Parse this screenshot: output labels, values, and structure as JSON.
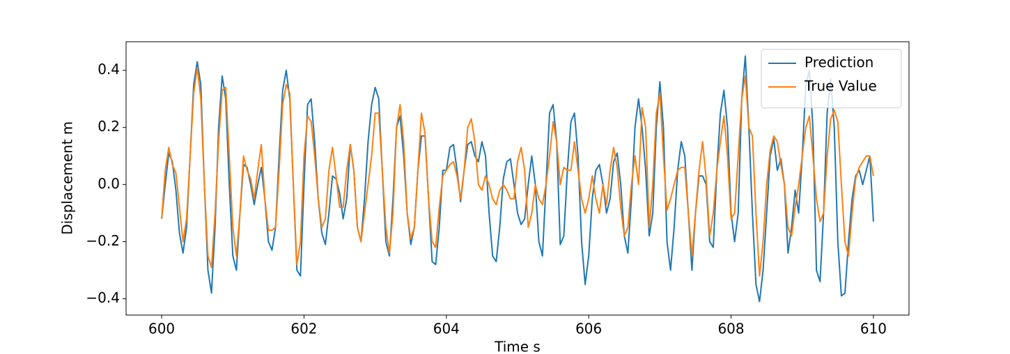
{
  "chart_data": {
    "type": "line",
    "x_label": "Time s",
    "y_label": "Displacement m",
    "x": [
      600.0,
      600.05,
      600.1,
      600.15,
      600.2,
      600.25,
      600.3,
      600.35,
      600.4,
      600.45,
      600.5,
      600.55,
      600.6,
      600.65,
      600.7,
      600.75,
      600.8,
      600.85,
      600.9,
      600.95,
      601.0,
      601.05,
      601.1,
      601.15,
      601.2,
      601.25,
      601.3,
      601.35,
      601.4,
      601.45,
      601.5,
      601.55,
      601.6,
      601.65,
      601.7,
      601.75,
      601.8,
      601.85,
      601.9,
      601.95,
      602.0,
      602.05,
      602.1,
      602.15,
      602.2,
      602.25,
      602.3,
      602.35,
      602.4,
      602.45,
      602.5,
      602.55,
      602.6,
      602.65,
      602.7,
      602.75,
      602.8,
      602.85,
      602.9,
      602.95,
      603.0,
      603.05,
      603.1,
      603.15,
      603.2,
      603.25,
      603.3,
      603.35,
      603.4,
      603.45,
      603.5,
      603.55,
      603.6,
      603.65,
      603.7,
      603.75,
      603.8,
      603.85,
      603.9,
      603.95,
      604.0,
      604.05,
      604.1,
      604.15,
      604.2,
      604.25,
      604.3,
      604.35,
      604.4,
      604.45,
      604.5,
      604.55,
      604.6,
      604.65,
      604.7,
      604.75,
      604.8,
      604.85,
      604.9,
      604.95,
      605.0,
      605.05,
      605.1,
      605.15,
      605.2,
      605.25,
      605.3,
      605.35,
      605.4,
      605.45,
      605.5,
      605.55,
      605.6,
      605.65,
      605.7,
      605.75,
      605.8,
      605.85,
      605.9,
      605.95,
      606.0,
      606.05,
      606.1,
      606.15,
      606.2,
      606.25,
      606.3,
      606.35,
      606.4,
      606.45,
      606.5,
      606.55,
      606.6,
      606.65,
      606.7,
      606.75,
      606.8,
      606.85,
      606.9,
      606.95,
      607.0,
      607.05,
      607.1,
      607.15,
      607.2,
      607.25,
      607.3,
      607.35,
      607.4,
      607.45,
      607.5,
      607.55,
      607.6,
      607.65,
      607.7,
      607.75,
      607.8,
      607.85,
      607.9,
      607.95,
      608.0,
      608.05,
      608.1,
      608.15,
      608.2,
      608.25,
      608.3,
      608.35,
      608.4,
      608.45,
      608.5,
      608.55,
      608.6,
      608.65,
      608.7,
      608.75,
      608.8,
      608.85,
      608.9,
      608.95,
      609.0,
      609.05,
      609.1,
      609.15,
      609.2,
      609.25,
      609.3,
      609.35,
      609.4,
      609.45,
      609.5,
      609.55,
      609.6,
      609.65,
      609.7,
      609.75,
      609.8,
      609.85,
      609.9,
      609.95,
      610.0
    ],
    "series": [
      {
        "name": "Prediction",
        "color": "#1f77b4",
        "values": [
          -0.12,
          0.0,
          0.11,
          0.08,
          -0.02,
          -0.17,
          -0.24,
          -0.15,
          0.1,
          0.35,
          0.43,
          0.35,
          0.0,
          -0.3,
          -0.38,
          -0.15,
          0.2,
          0.38,
          0.3,
          0.0,
          -0.25,
          -0.3,
          -0.1,
          0.07,
          0.06,
          0.0,
          -0.07,
          0.0,
          0.06,
          -0.05,
          -0.2,
          -0.23,
          -0.15,
          0.1,
          0.33,
          0.4,
          0.3,
          0.0,
          -0.3,
          -0.32,
          0.0,
          0.28,
          0.3,
          0.15,
          -0.05,
          -0.17,
          -0.21,
          -0.1,
          0.03,
          0.02,
          -0.03,
          -0.12,
          -0.05,
          0.14,
          0.05,
          -0.15,
          -0.2,
          -0.05,
          0.15,
          0.28,
          0.34,
          0.3,
          0.05,
          -0.2,
          -0.25,
          -0.05,
          0.2,
          0.24,
          0.1,
          -0.1,
          -0.21,
          -0.15,
          0.05,
          0.17,
          0.17,
          -0.05,
          -0.27,
          -0.28,
          -0.15,
          0.05,
          0.05,
          0.13,
          0.14,
          0.05,
          -0.06,
          0.05,
          0.14,
          0.15,
          0.1,
          0.08,
          0.15,
          0.1,
          -0.1,
          -0.25,
          -0.27,
          -0.15,
          0.02,
          0.08,
          0.09,
          0.0,
          -0.1,
          -0.14,
          -0.12,
          0.0,
          0.1,
          0.0,
          -0.2,
          -0.25,
          0.0,
          0.25,
          0.28,
          0.15,
          -0.21,
          -0.18,
          0.05,
          0.22,
          0.25,
          0.1,
          -0.2,
          -0.35,
          -0.25,
          -0.05,
          0.05,
          0.07,
          0.0,
          -0.1,
          -0.05,
          0.08,
          0.11,
          0.0,
          -0.18,
          -0.24,
          -0.05,
          0.2,
          0.3,
          0.2,
          0.05,
          -0.18,
          -0.1,
          0.2,
          0.36,
          0.2,
          -0.2,
          -0.3,
          -0.15,
          0.05,
          0.15,
          0.1,
          -0.1,
          -0.3,
          -0.1,
          0.03,
          0.03,
          0.0,
          -0.2,
          -0.22,
          0.05,
          0.25,
          0.33,
          0.2,
          -0.1,
          -0.2,
          -0.1,
          0.3,
          0.45,
          0.2,
          -0.1,
          -0.35,
          -0.41,
          -0.3,
          -0.1,
          0.1,
          0.16,
          0.05,
          0.09,
          0.0,
          -0.24,
          -0.15,
          -0.02,
          -0.1,
          0.1,
          0.35,
          0.4,
          0.2,
          -0.3,
          -0.34,
          -0.1,
          0.25,
          0.37,
          0.2,
          -0.2,
          -0.39,
          -0.38,
          -0.2,
          -0.05,
          0.03,
          0.05,
          0.0,
          0.05,
          0.1,
          -0.13
        ]
      },
      {
        "name": "True Value",
        "color": "#ff7f0e",
        "values": [
          -0.12,
          0.05,
          0.13,
          0.07,
          0.04,
          -0.08,
          -0.2,
          -0.12,
          0.1,
          0.32,
          0.41,
          0.3,
          0.0,
          -0.25,
          -0.29,
          -0.1,
          0.15,
          0.33,
          0.34,
          0.1,
          -0.15,
          -0.25,
          -0.1,
          0.1,
          0.05,
          0.02,
          -0.05,
          0.05,
          0.14,
          -0.05,
          -0.16,
          -0.16,
          -0.15,
          0.05,
          0.28,
          0.35,
          0.32,
          0.0,
          -0.28,
          -0.2,
          0.1,
          0.24,
          0.22,
          0.1,
          -0.05,
          -0.15,
          -0.12,
          0.05,
          0.13,
          0.03,
          -0.08,
          -0.08,
          0.05,
          0.14,
          0.05,
          -0.15,
          -0.2,
          -0.1,
          0.0,
          0.1,
          0.25,
          0.25,
          0.05,
          -0.15,
          -0.24,
          -0.1,
          0.2,
          0.28,
          0.15,
          -0.1,
          -0.19,
          -0.15,
          0.05,
          0.25,
          0.18,
          -0.05,
          -0.2,
          -0.22,
          -0.08,
          0.03,
          0.05,
          0.07,
          0.08,
          0.03,
          -0.05,
          0.05,
          0.2,
          0.23,
          0.15,
          0.0,
          -0.02,
          0.03,
          0.0,
          -0.05,
          -0.07,
          -0.02,
          0.0,
          -0.02,
          -0.05,
          -0.05,
          0.08,
          0.13,
          0.05,
          -0.15,
          -0.1,
          0.0,
          -0.05,
          -0.07,
          0.0,
          0.1,
          0.22,
          0.15,
          0.0,
          0.06,
          0.05,
          0.05,
          0.15,
          0.05,
          -0.05,
          -0.1,
          -0.05,
          0.03,
          -0.05,
          -0.1,
          0.0,
          -0.07,
          0.05,
          0.13,
          0.06,
          -0.08,
          -0.18,
          -0.15,
          0.0,
          0.1,
          0.0,
          0.27,
          0.2,
          -0.15,
          0.0,
          0.25,
          0.32,
          0.1,
          -0.09,
          -0.05,
          0.0,
          0.05,
          0.06,
          0.06,
          -0.1,
          -0.25,
          -0.1,
          0.05,
          0.15,
          0.02,
          -0.18,
          -0.1,
          0.05,
          0.15,
          0.24,
          0.1,
          -0.12,
          -0.1,
          0.1,
          0.3,
          0.38,
          0.2,
          0.17,
          -0.1,
          -0.32,
          -0.2,
          0.0,
          0.12,
          0.17,
          0.15,
          0.07,
          0.0,
          -0.15,
          -0.18,
          -0.08,
          0.0,
          0.1,
          0.2,
          0.24,
          0.1,
          -0.05,
          -0.13,
          -0.1,
          0.1,
          0.23,
          0.26,
          0.22,
          0.0,
          -0.2,
          -0.25,
          -0.1,
          0.02,
          0.06,
          0.08,
          0.1,
          0.1,
          0.03
        ]
      }
    ],
    "xlim": [
      599.5,
      610.5
    ],
    "xticks": [
      600,
      602,
      604,
      606,
      608,
      610
    ],
    "ylim": [
      -0.457,
      0.5
    ],
    "yticks": [
      {
        "value": -0.4,
        "label": "−0.4"
      },
      {
        "value": -0.2,
        "label": "−0.2"
      },
      {
        "value": 0,
        "label": "0.0"
      },
      0.2,
      0.4
    ],
    "legend": "upper right"
  }
}
